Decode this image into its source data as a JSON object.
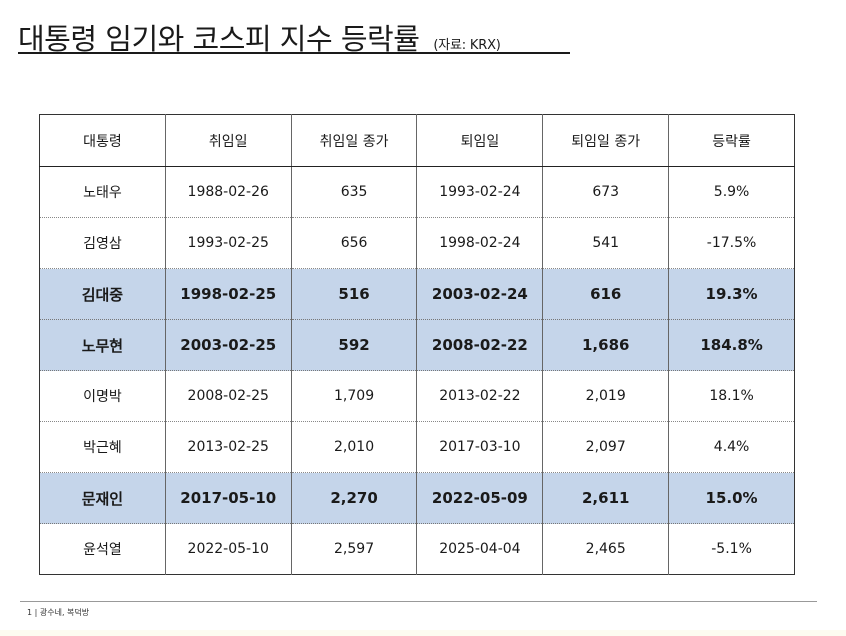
{
  "title": "대통령 임기와 코스피 지수 등락률",
  "source": "(자료: KRX)",
  "table": {
    "headers": [
      "대통령",
      "취임일",
      "취임일 종가",
      "퇴임일",
      "퇴임일 종가",
      "등락률"
    ],
    "rows": [
      {
        "highlight": false,
        "cells": [
          "노태우",
          "1988-02-26",
          "635",
          "1993-02-24",
          "673",
          "5.9%"
        ]
      },
      {
        "highlight": false,
        "cells": [
          "김영삼",
          "1993-02-25",
          "656",
          "1998-02-24",
          "541",
          "-17.5%"
        ]
      },
      {
        "highlight": true,
        "cells": [
          "김대중",
          "1998-02-25",
          "516",
          "2003-02-24",
          "616",
          "19.3%"
        ]
      },
      {
        "highlight": true,
        "cells": [
          "노무현",
          "2003-02-25",
          "592",
          "2008-02-22",
          "1,686",
          "184.8%"
        ]
      },
      {
        "highlight": false,
        "cells": [
          "이명박",
          "2008-02-25",
          "1,709",
          "2013-02-22",
          "2,019",
          "18.1%"
        ]
      },
      {
        "highlight": false,
        "cells": [
          "박근혜",
          "2013-02-25",
          "2,010",
          "2017-03-10",
          "2,097",
          "4.4%"
        ]
      },
      {
        "highlight": true,
        "cells": [
          "문재인",
          "2017-05-10",
          "2,270",
          "2022-05-09",
          "2,611",
          "15.0%"
        ]
      },
      {
        "highlight": false,
        "cells": [
          "윤석열",
          "2022-05-10",
          "2,597",
          "2025-04-04",
          "2,465",
          "-5.1%"
        ]
      }
    ]
  },
  "footer": "1 | 광수네, 복덕방",
  "colors": {
    "highlight_row": "#c5d5ea"
  }
}
